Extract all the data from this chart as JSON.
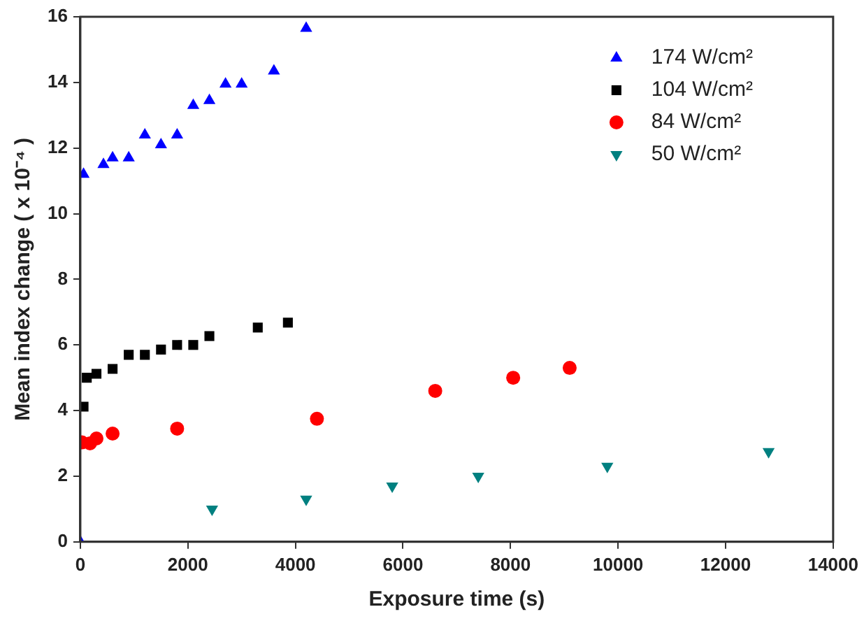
{
  "chart_data": {
    "type": "scatter",
    "xlabel": "Exposure time (s)",
    "ylabel": "Mean index change ( x 10⁻⁴ )",
    "xlim": [
      0,
      14000
    ],
    "xticks": [
      0,
      2000,
      4000,
      6000,
      8000,
      10000,
      12000,
      14000
    ],
    "ylim": [
      0,
      16
    ],
    "yticks": [
      0,
      2,
      4,
      6,
      8,
      10,
      12,
      14,
      16
    ],
    "grid": false,
    "legend": "top right",
    "series": [
      {
        "name": "174 W/cm²",
        "color": "#0000ff",
        "marker": "triangle",
        "x": [
          0,
          60,
          430,
          600,
          900,
          1200,
          1500,
          1800,
          2100,
          2400,
          2700,
          3000,
          3600,
          4200
        ],
        "values": [
          0,
          11.2,
          11.5,
          11.7,
          11.7,
          12.4,
          12.1,
          12.4,
          13.3,
          13.45,
          13.95,
          13.95,
          14.35,
          15.65
        ]
      },
      {
        "name": "104 W/cm²",
        "color": "#000000",
        "marker": "square",
        "x": [
          60,
          120,
          300,
          600,
          900,
          1200,
          1500,
          1800,
          2100,
          2400,
          3300,
          3860
        ],
        "values": [
          4.12,
          5.0,
          5.12,
          5.27,
          5.7,
          5.7,
          5.86,
          6.0,
          6.0,
          6.27,
          6.53,
          6.68
        ]
      },
      {
        "name": "84 W/cm²",
        "color": "#ff0000",
        "marker": "circle",
        "x": [
          30,
          180,
          300,
          600,
          1800,
          4400,
          6600,
          8050,
          9100
        ],
        "values": [
          3.03,
          3.0,
          3.15,
          3.3,
          3.45,
          3.75,
          4.6,
          5.0,
          5.3
        ]
      },
      {
        "name": "50 W/cm²",
        "color": "#008080",
        "marker": "triangle-down",
        "x": [
          2450,
          4200,
          5800,
          7400,
          9800,
          12800
        ],
        "values": [
          1.0,
          1.3,
          1.7,
          2.0,
          2.3,
          2.75
        ]
      }
    ]
  }
}
